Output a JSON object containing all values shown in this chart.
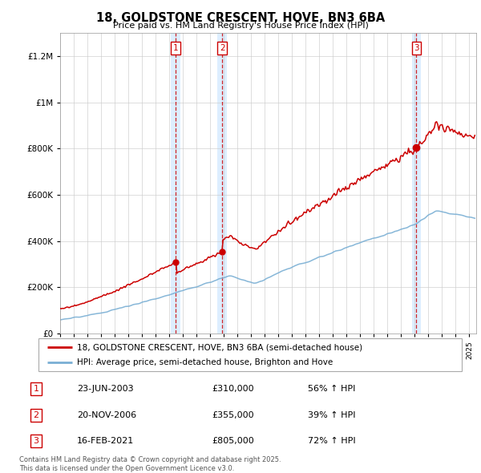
{
  "title": "18, GOLDSTONE CRESCENT, HOVE, BN3 6BA",
  "subtitle": "Price paid vs. HM Land Registry's House Price Index (HPI)",
  "ylim": [
    0,
    1300000
  ],
  "yticks": [
    0,
    200000,
    400000,
    600000,
    800000,
    1000000,
    1200000
  ],
  "xmin": 1995,
  "xmax": 2025.5,
  "legend_label_red": "18, GOLDSTONE CRESCENT, HOVE, BN3 6BA (semi-detached house)",
  "legend_label_blue": "HPI: Average price, semi-detached house, Brighton and Hove",
  "sale1_label": "1",
  "sale1_date": "23-JUN-2003",
  "sale1_price": "£310,000",
  "sale1_pct": "56% ↑ HPI",
  "sale1_x": 2003.47,
  "sale1_y": 310000,
  "sale2_label": "2",
  "sale2_date": "20-NOV-2006",
  "sale2_price": "£355,000",
  "sale2_pct": "39% ↑ HPI",
  "sale2_x": 2006.89,
  "sale2_y": 355000,
  "sale3_label": "3",
  "sale3_date": "16-FEB-2021",
  "sale3_price": "£805,000",
  "sale3_pct": "72% ↑ HPI",
  "sale3_x": 2021.12,
  "sale3_y": 805000,
  "red_color": "#cc0000",
  "blue_color": "#7aafd4",
  "shade_color": "#ddeeff",
  "footer": "Contains HM Land Registry data © Crown copyright and database right 2025.\nThis data is licensed under the Open Government Licence v3.0."
}
